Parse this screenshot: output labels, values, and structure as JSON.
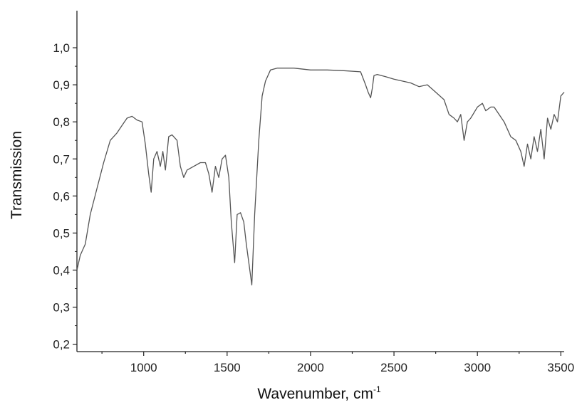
{
  "chart_data": {
    "type": "line",
    "xlabel": "Wavenumber, cm",
    "xlabel_superscript": "-1",
    "ylabel": "Transmission",
    "xlim": [
      600,
      3520
    ],
    "ylim": [
      0.18,
      1.1
    ],
    "xticks": [
      1000,
      1500,
      2000,
      2500,
      3000,
      3500
    ],
    "xtick_labels": [
      "1000",
      "1500",
      "2000",
      "2500",
      "3000",
      "3500"
    ],
    "yticks": [
      0.2,
      0.3,
      0.4,
      0.5,
      0.6,
      0.7,
      0.8,
      0.9,
      1.0
    ],
    "ytick_labels": [
      "0,2",
      "0,3",
      "0,4",
      "0,5",
      "0,6",
      "0,7",
      "0,8",
      "0,9",
      "1,0"
    ],
    "grid": false,
    "line_color": "#555555",
    "series": [
      {
        "x": [
          600,
          620,
          650,
          680,
          720,
          760,
          800,
          840,
          870,
          900,
          930,
          960,
          990,
          1010,
          1030,
          1045,
          1060,
          1080,
          1100,
          1115,
          1130,
          1150,
          1170,
          1200,
          1220,
          1240,
          1260,
          1300,
          1340,
          1370,
          1390,
          1410,
          1430,
          1450,
          1470,
          1490,
          1510,
          1525,
          1545,
          1560,
          1580,
          1600,
          1615,
          1630,
          1648,
          1665,
          1690,
          1710,
          1730,
          1760,
          1800,
          1900,
          2000,
          2100,
          2200,
          2300,
          2330,
          2345,
          2360,
          2370,
          2380,
          2400,
          2450,
          2500,
          2550,
          2600,
          2650,
          2700,
          2750,
          2800,
          2830,
          2860,
          2880,
          2900,
          2920,
          2940,
          2960,
          3000,
          3030,
          3050,
          3080,
          3100,
          3130,
          3160,
          3200,
          3230,
          3260,
          3280,
          3300,
          3320,
          3340,
          3360,
          3380,
          3400,
          3420,
          3440,
          3460,
          3480,
          3500,
          3520
        ],
        "y": [
          0.4,
          0.44,
          0.47,
          0.55,
          0.62,
          0.69,
          0.75,
          0.77,
          0.79,
          0.81,
          0.815,
          0.805,
          0.8,
          0.74,
          0.66,
          0.61,
          0.7,
          0.72,
          0.68,
          0.72,
          0.67,
          0.76,
          0.765,
          0.75,
          0.68,
          0.65,
          0.67,
          0.68,
          0.69,
          0.69,
          0.66,
          0.61,
          0.68,
          0.65,
          0.7,
          0.71,
          0.65,
          0.53,
          0.42,
          0.55,
          0.555,
          0.53,
          0.47,
          0.42,
          0.36,
          0.55,
          0.75,
          0.87,
          0.91,
          0.94,
          0.945,
          0.945,
          0.94,
          0.94,
          0.938,
          0.935,
          0.9,
          0.88,
          0.865,
          0.89,
          0.925,
          0.928,
          0.922,
          0.915,
          0.91,
          0.905,
          0.895,
          0.9,
          0.88,
          0.86,
          0.82,
          0.81,
          0.8,
          0.82,
          0.75,
          0.8,
          0.81,
          0.84,
          0.85,
          0.83,
          0.84,
          0.84,
          0.82,
          0.8,
          0.76,
          0.75,
          0.72,
          0.68,
          0.74,
          0.7,
          0.76,
          0.72,
          0.78,
          0.7,
          0.81,
          0.78,
          0.82,
          0.8,
          0.87,
          0.88
        ]
      }
    ]
  }
}
